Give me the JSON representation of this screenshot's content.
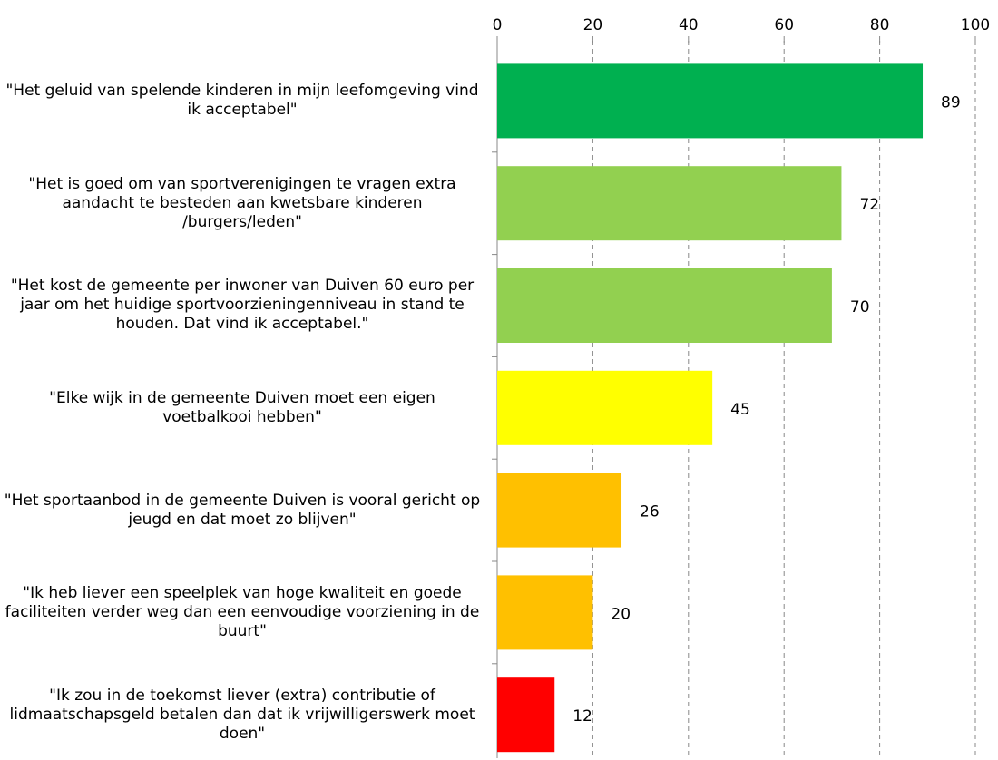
{
  "chart_data": {
    "type": "bar",
    "orientation": "horizontal",
    "categories": [
      "\"Het geluid van spelende kinderen in mijn leefomgeving vind ik acceptabel\"",
      "\"Het is goed om van sportverenigingen te vragen extra aandacht te besteden aan kwetsbare kinderen /burgers/leden\"",
      "\"Het kost de gemeente per inwoner van Duiven 60 euro per jaar om het huidige sportvoorzieningenniveau in stand te houden. Dat vind ik acceptabel.\"",
      "\"Elke wijk in de gemeente Duiven moet een eigen voetbalkooi hebben\"",
      "\"Het sportaanbod in de gemeente Duiven is vooral gericht op jeugd en dat moet zo blijven\"",
      "\"Ik heb liever een speelplek van hoge kwaliteit en goede faciliteiten verder weg dan een eenvoudige voorziening in de buurt\"",
      "\"Ik zou in de toekomst liever (extra) contributie of lidmaatschapsgeld betalen dan dat ik vrijwilligerswerk moet doen\""
    ],
    "values": [
      89,
      72,
      70,
      45,
      26,
      20,
      12
    ],
    "colors": [
      "#00b050",
      "#92d050",
      "#92d050",
      "#ffff00",
      "#ffc000",
      "#ffc000",
      "#ff0000"
    ],
    "xlim": [
      0,
      100
    ],
    "xticks": [
      0,
      20,
      40,
      60,
      80,
      100
    ],
    "grid": true
  }
}
